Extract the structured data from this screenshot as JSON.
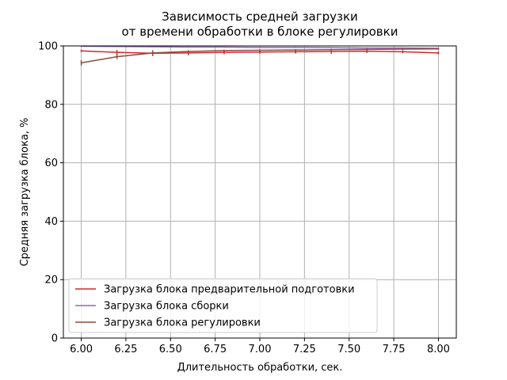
{
  "chart_data": {
    "type": "line",
    "title": "Зависимость средней загрузки\nот времени обработки в блоке регулировки",
    "xlabel": "Длительность обработки, сек.",
    "ylabel": "Средняя загрузка блока, %",
    "xlim": [
      5.9,
      8.1
    ],
    "ylim": [
      0,
      100
    ],
    "xticks": [
      6.0,
      6.25,
      6.5,
      6.75,
      7.0,
      7.25,
      7.5,
      7.75,
      8.0
    ],
    "xtick_labels": [
      "6.00",
      "6.25",
      "6.50",
      "6.75",
      "7.00",
      "7.25",
      "7.50",
      "7.75",
      "8.00"
    ],
    "yticks": [
      0,
      20,
      40,
      60,
      80,
      100
    ],
    "ytick_labels": [
      "0",
      "20",
      "40",
      "60",
      "80",
      "100"
    ],
    "grid": true,
    "legend_position": "lower-left",
    "x": [
      6.0,
      6.2,
      6.4,
      6.6,
      6.8,
      7.0,
      7.2,
      7.4,
      7.6,
      7.8,
      8.0
    ],
    "series": [
      {
        "name": "Загрузка блока предварительной подготовки",
        "color": "#d62728",
        "values": [
          98.3,
          97.8,
          97.5,
          97.6,
          97.8,
          97.9,
          98.0,
          98.1,
          98.2,
          98.0,
          97.6
        ],
        "errors": [
          0.4,
          0.8,
          1.0,
          0.8,
          0.7,
          0.6,
          0.6,
          0.8,
          0.6,
          0.5,
          0.5
        ]
      },
      {
        "name": "Загрузка блока сборки",
        "color": "#9467bd",
        "values": [
          99.9,
          99.8,
          99.7,
          99.6,
          99.6,
          99.5,
          99.5,
          99.4,
          99.3,
          99.3,
          99.2
        ],
        "errors": [
          0.2,
          0.2,
          0.2,
          0.2,
          0.2,
          0.2,
          0.2,
          0.2,
          0.2,
          0.2,
          0.2
        ]
      },
      {
        "name": "Загрузка блока регулировки",
        "color": "#8c4a3f",
        "values": [
          94.2,
          96.3,
          97.6,
          98.1,
          98.4,
          98.5,
          98.6,
          98.7,
          98.8,
          98.9,
          99.0
        ],
        "errors": [
          0.9,
          0.8,
          0.5,
          0.4,
          0.3,
          0.3,
          0.3,
          0.3,
          0.3,
          0.3,
          0.3
        ]
      }
    ]
  }
}
